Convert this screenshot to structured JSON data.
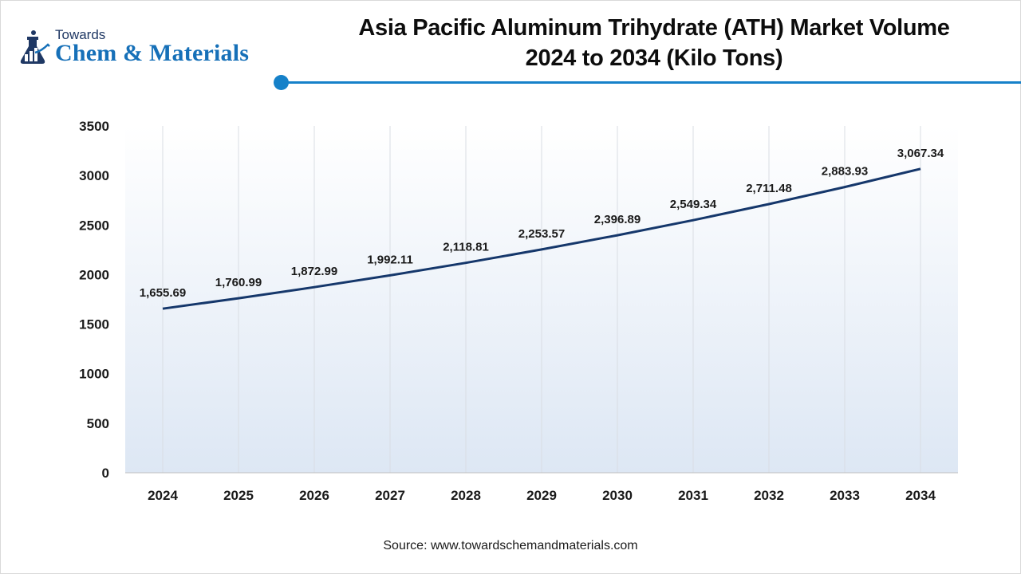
{
  "brand": {
    "line1": "Towards",
    "line2": "Chem & Materials",
    "accent": "#1670b8",
    "icon": "flask-chart-icon"
  },
  "header": {
    "title_line1": "Asia Pacific Aluminum Trihydrate (ATH) Market Volume",
    "title_line2": "2024 to 2034 (Kilo Tons)"
  },
  "footer": {
    "source": "Source: www.towardschemandmaterials.com"
  },
  "chart_data": {
    "type": "line",
    "title": "Asia Pacific Aluminum Trihydrate (ATH) Market Volume 2024 to 2034 (Kilo Tons)",
    "xlabel": "",
    "ylabel": "",
    "x": [
      "2024",
      "2025",
      "2026",
      "2027",
      "2028",
      "2029",
      "2030",
      "2031",
      "2032",
      "2033",
      "2034"
    ],
    "series": [
      {
        "values": [
          1655.69,
          1760.99,
          1872.99,
          1992.11,
          2118.81,
          2253.57,
          2396.89,
          2549.34,
          2711.48,
          2883.93,
          3067.34
        ],
        "labels": [
          "1,655.69",
          "1,760.99",
          "1,872.99",
          "1,992.11",
          "2,118.81",
          "2,253.57",
          "2,396.89",
          "2,549.34",
          "2,711.48",
          "2,883.93",
          "3,067.34"
        ],
        "color": "#15376b"
      }
    ],
    "ylim": [
      0,
      3500
    ],
    "yticks": [
      0,
      500,
      1000,
      1500,
      2000,
      2500,
      3000,
      3500
    ],
    "grid": "vertical",
    "legend": "none",
    "plot_background": "gradient-white-to-light-blue"
  }
}
